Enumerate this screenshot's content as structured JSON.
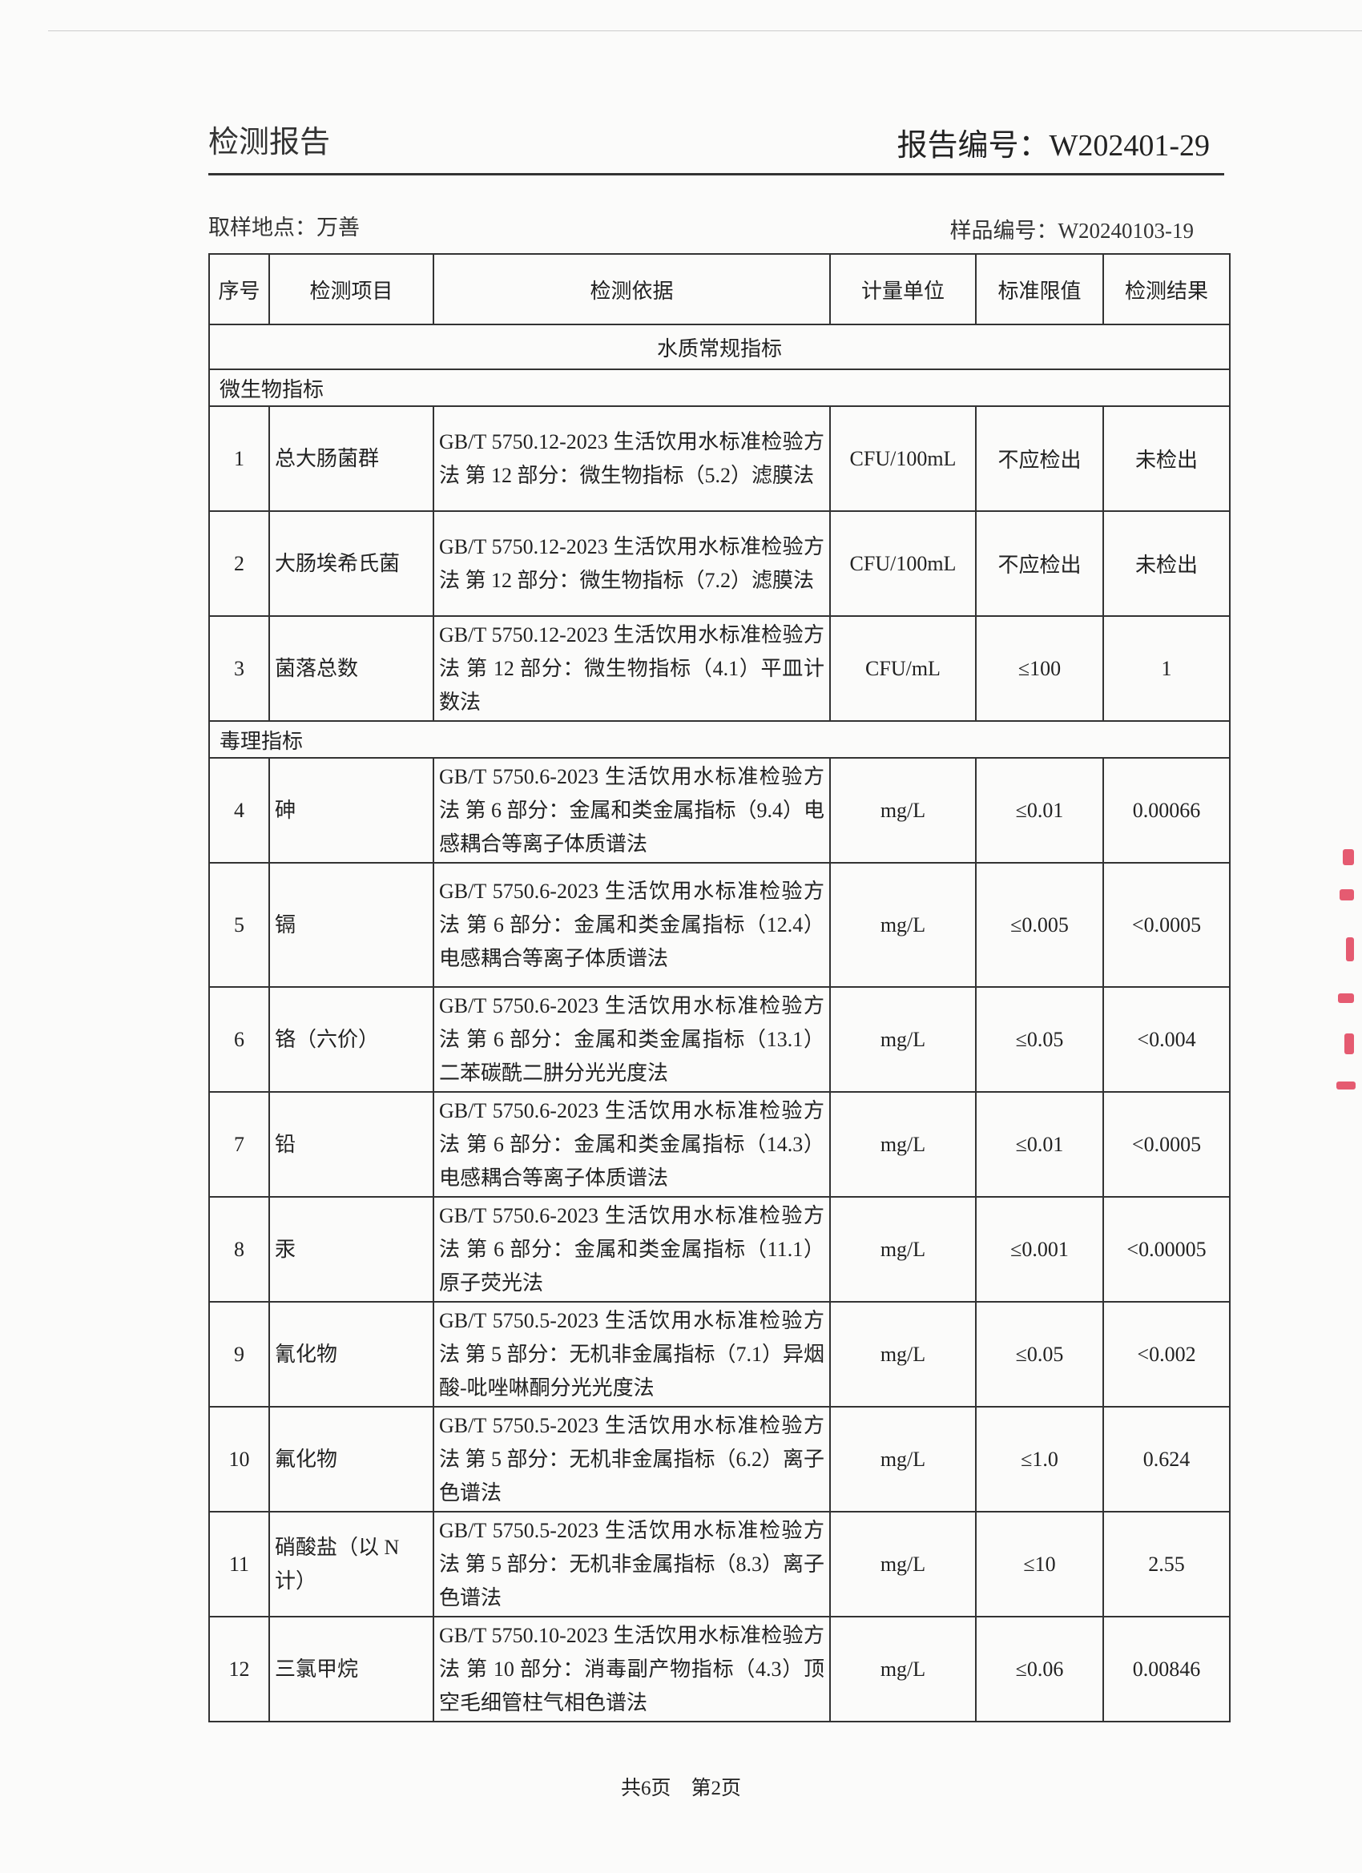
{
  "header": {
    "title": "检测报告",
    "report_no": "报告编号：W202401-29",
    "location": "取样地点：万善",
    "sample_no": "样品编号：W20240103-19"
  },
  "table": {
    "columns": [
      "序号",
      "检测项目",
      "检测依据",
      "计量单位",
      "标准限值",
      "检测结果"
    ],
    "section": "水质常规指标",
    "groups": [
      {
        "name": "微生物指标",
        "rows": [
          {
            "no": "1",
            "item": "总大肠菌群",
            "method": "GB/T 5750.12-2023 生活饮用水标准检验方法 第 12 部分：微生物指标（5.2）滤膜法",
            "unit": "CFU/100mL",
            "limit": "不应检出",
            "result": "未检出"
          },
          {
            "no": "2",
            "item": "大肠埃希氏菌",
            "method": "GB/T 5750.12-2023 生活饮用水标准检验方法 第 12 部分：微生物指标（7.2）滤膜法",
            "unit": "CFU/100mL",
            "limit": "不应检出",
            "result": "未检出"
          },
          {
            "no": "3",
            "item": "菌落总数",
            "method": "GB/T 5750.12-2023 生活饮用水标准检验方法 第 12 部分：微生物指标（4.1）平皿计数法",
            "unit": "CFU/mL",
            "limit": "≤100",
            "result": "1"
          }
        ]
      },
      {
        "name": "毒理指标",
        "rows": [
          {
            "no": "4",
            "item": "砷",
            "method": "GB/T 5750.6-2023 生活饮用水标准检验方法 第 6 部分：金属和类金属指标（9.4）电感耦合等离子体质谱法",
            "unit": "mg/L",
            "limit": "≤0.01",
            "result": "0.00066"
          },
          {
            "no": "5",
            "item": "镉",
            "method": "GB/T 5750.6-2023 生活饮用水标准检验方法 第 6 部分：金属和类金属指标（12.4）电感耦合等离子体质谱法",
            "unit": "mg/L",
            "limit": "≤0.005",
            "result": "<0.0005"
          },
          {
            "no": "6",
            "item": "铬（六价）",
            "method": "GB/T 5750.6-2023 生活饮用水标准检验方法 第 6 部分：金属和类金属指标（13.1）二苯碳酰二肼分光光度法",
            "unit": "mg/L",
            "limit": "≤0.05",
            "result": "<0.004"
          },
          {
            "no": "7",
            "item": "铅",
            "method": "GB/T 5750.6-2023 生活饮用水标准检验方法 第 6 部分：金属和类金属指标（14.3） 电感耦合等离子体质谱法",
            "unit": "mg/L",
            "limit": "≤0.01",
            "result": "<0.0005"
          },
          {
            "no": "8",
            "item": "汞",
            "method": "GB/T 5750.6-2023 生活饮用水标准检验方法 第 6 部分：金属和类金属指标（11.1）原子荧光法",
            "unit": "mg/L",
            "limit": "≤0.001",
            "result": "<0.00005"
          },
          {
            "no": "9",
            "item": "氰化物",
            "method": "GB/T 5750.5-2023 生活饮用水标准检验方法 第 5 部分：无机非金属指标（7.1）异烟酸-吡唑啉酮分光光度法",
            "unit": "mg/L",
            "limit": "≤0.05",
            "result": "<0.002"
          },
          {
            "no": "10",
            "item": "氟化物",
            "method": "GB/T 5750.5-2023 生活饮用水标准检验方法 第 5 部分：无机非金属指标（6.2）离子色谱法",
            "unit": "mg/L",
            "limit": "≤1.0",
            "result": "0.624"
          },
          {
            "no": "11",
            "item": "硝酸盐（以 N 计）",
            "method": "GB/T 5750.5-2023 生活饮用水标准检验方法 第 5 部分：无机非金属指标（8.3）离子色谱法",
            "unit": "mg/L",
            "limit": "≤10",
            "result": "2.55"
          },
          {
            "no": "12",
            "item": "三氯甲烷",
            "method": "GB/T 5750.10-2023 生活饮用水标准检验方法 第 10 部分：消毒副产物指标（4.3）顶空毛细管柱气相色谱法",
            "unit": "mg/L",
            "limit": "≤0.06",
            "result": "0.00846"
          }
        ]
      }
    ]
  },
  "footer": "共6页　第2页",
  "colors": {
    "stamp": "#e0334f"
  }
}
